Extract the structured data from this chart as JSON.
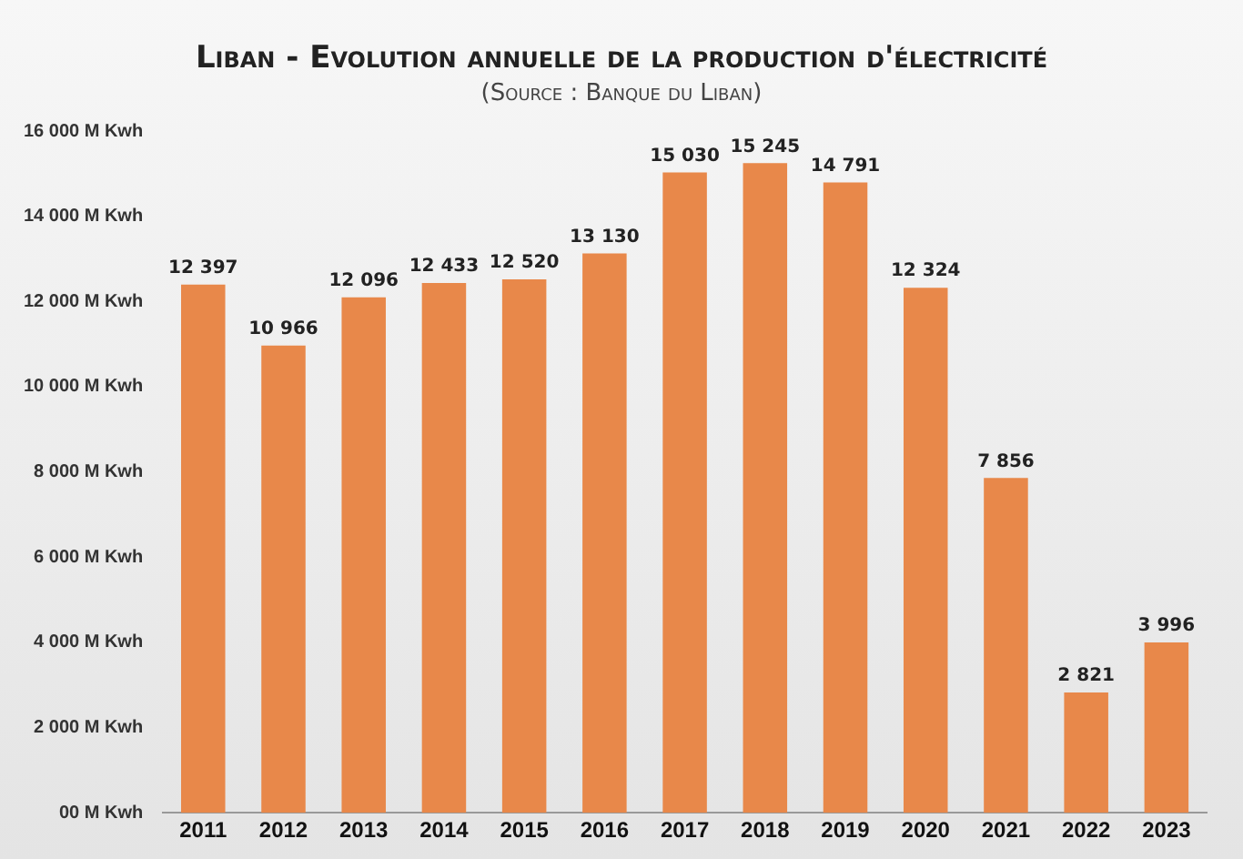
{
  "chart_data": {
    "type": "bar",
    "title": "Liban - Evolution annuelle de la production d'électricité",
    "subtitle": "(Source : Banque du Liban)",
    "categories": [
      "2011",
      "2012",
      "2013",
      "2014",
      "2015",
      "2016",
      "2017",
      "2018",
      "2019",
      "2020",
      "2021",
      "2022",
      "2023"
    ],
    "values": [
      12397,
      10966,
      12096,
      12433,
      12520,
      13130,
      15030,
      15245,
      14791,
      12324,
      7856,
      2821,
      3996
    ],
    "value_labels": [
      "12 397",
      "10 966",
      "12 096",
      "12 433",
      "12 520",
      "13 130",
      "15 030",
      "15 245",
      "14 791",
      "12 324",
      "7 856",
      "2 821",
      "3 996"
    ],
    "color": "#e8884a",
    "ylim": [
      0,
      16000
    ],
    "yticks": [
      {
        "value": 0,
        "label": "00 M Kwh"
      },
      {
        "value": 2000,
        "label": "2 000 M Kwh"
      },
      {
        "value": 4000,
        "label": "4 000 M Kwh"
      },
      {
        "value": 6000,
        "label": "6 000 M Kwh"
      },
      {
        "value": 8000,
        "label": "8 000 M Kwh"
      },
      {
        "value": 10000,
        "label": "10 000 M Kwh"
      },
      {
        "value": 12000,
        "label": "12 000 M Kwh"
      },
      {
        "value": 14000,
        "label": "14 000 M Kwh"
      },
      {
        "value": 16000,
        "label": "16 000 M Kwh"
      }
    ],
    "grid": false,
    "legend": false
  }
}
